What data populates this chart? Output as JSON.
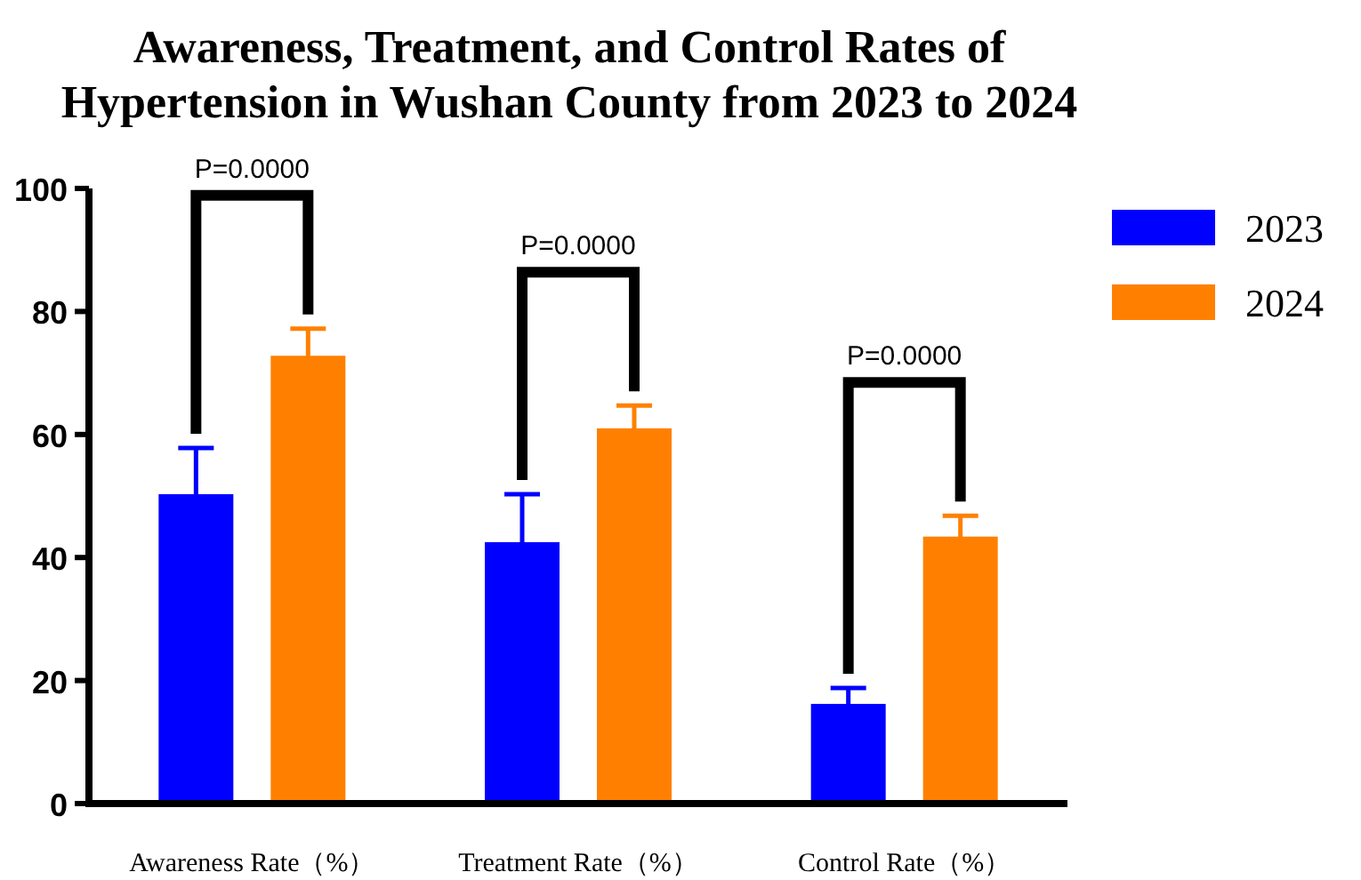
{
  "chart_data": {
    "type": "bar",
    "title": "Awareness, Treatment, and Control Rates of\nHypertension in Wushan County from 2023 to 2024",
    "categories": [
      "Awareness Rate（%）",
      "Treatment Rate（%）",
      "Control Rate（%）"
    ],
    "series": [
      {
        "name": "2023",
        "color": "#0000ff",
        "values": [
          50.3,
          42.5,
          16.2
        ],
        "errors": [
          7.5,
          7.8,
          2.6
        ]
      },
      {
        "name": "2024",
        "color": "#ff8000",
        "values": [
          72.8,
          61.0,
          43.4
        ],
        "errors": [
          4.4,
          3.7,
          3.4
        ]
      }
    ],
    "ylim": [
      0,
      100
    ],
    "yticks": [
      0,
      20,
      40,
      60,
      80,
      100
    ],
    "legend": "top right",
    "annotations": [
      "P=0.0000",
      "P=0.0000",
      "P=0.0000"
    ]
  }
}
